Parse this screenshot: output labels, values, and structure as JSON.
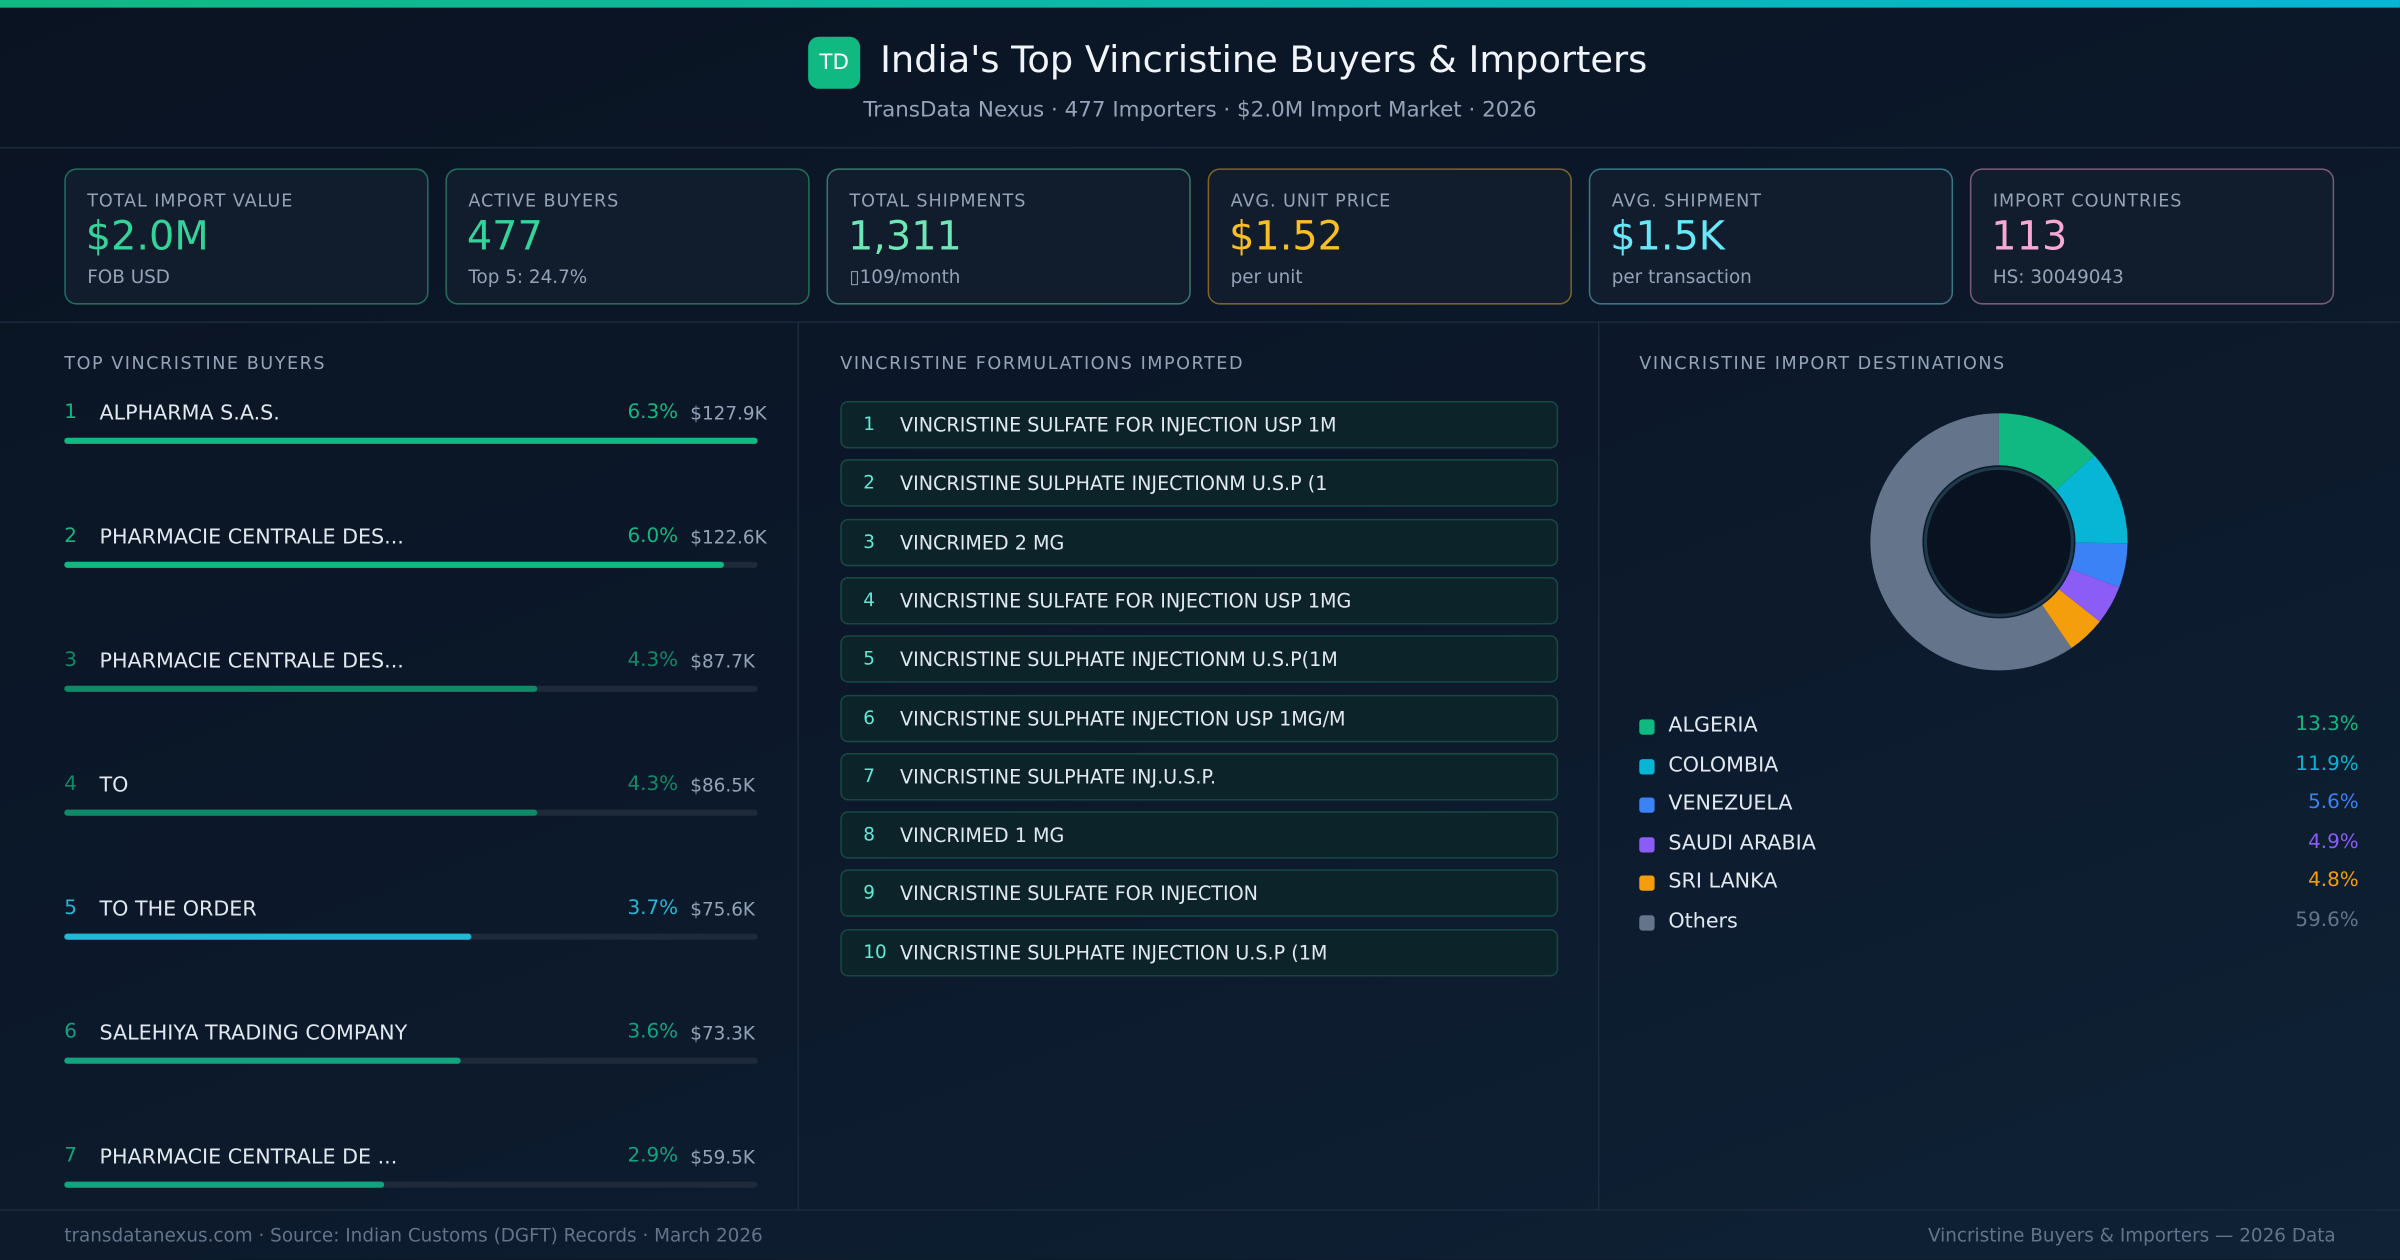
{
  "header": {
    "logo": "TD",
    "title": "India's Top Vincristine Buyers & Importers",
    "subtitle": "TransData Nexus · 477 Importers · $2.0M Import Market · 2026"
  },
  "kpis": [
    {
      "label": "TOTAL IMPORT VALUE",
      "value": "$2.0M",
      "sub": "FOB USD",
      "color": "#34d399"
    },
    {
      "label": "ACTIVE BUYERS",
      "value": "477",
      "sub": "Top 5: 24.7%",
      "color": "#34d399"
    },
    {
      "label": "TOTAL SHIPMENTS",
      "value": "1,311",
      "sub": "▯109/month",
      "color": "#6ee7b7"
    },
    {
      "label": "AVG. UNIT PRICE",
      "value": "$1.52",
      "sub": "per unit",
      "color": "#fbbf24"
    },
    {
      "label": "AVG. SHIPMENT",
      "value": "$1.5K",
      "sub": "per transaction",
      "color": "#67e8f9"
    },
    {
      "label": "IMPORT COUNTRIES",
      "value": "113",
      "sub": "HS: 30049043",
      "color": "#f9a8d4"
    }
  ],
  "buyers": {
    "title": "TOP VINCRISTINE BUYERS",
    "items": [
      {
        "rank": 1,
        "name": "ALPHARMA S.A.S.",
        "share": 6.3,
        "share_label": "6.3%",
        "value": "$127.9K",
        "color": "#10b981"
      },
      {
        "rank": 2,
        "name": "PHARMACIE CENTRALE DES...",
        "share": 6.0,
        "share_label": "6.0%",
        "value": "$122.6K",
        "color": "#10b981"
      },
      {
        "rank": 3,
        "name": "PHARMACIE CENTRALE DES...",
        "share": 4.3,
        "share_label": "4.3%",
        "value": "$87.7K",
        "color": "#0f8a67"
      },
      {
        "rank": 4,
        "name": "TO",
        "share": 4.3,
        "share_label": "4.3%",
        "value": "$86.5K",
        "color": "#0f8a67"
      },
      {
        "rank": 5,
        "name": "TO THE ORDER",
        "share": 3.7,
        "share_label": "3.7%",
        "value": "$75.6K",
        "color": "#22b8d8"
      },
      {
        "rank": 6,
        "name": "SALEHIYA TRADING COMPANY",
        "share": 3.6,
        "share_label": "3.6%",
        "value": "$73.3K",
        "color": "#12a37f"
      },
      {
        "rank": 7,
        "name": "PHARMACIE CENTRALE DE ...",
        "share": 2.9,
        "share_label": "2.9%",
        "value": "$59.5K",
        "color": "#12a37f"
      }
    ]
  },
  "formulations": {
    "title": "VINCRISTINE FORMULATIONS IMPORTED",
    "items": [
      {
        "rank": 1,
        "name": "VINCRISTINE SULFATE FOR INJECTION USP 1M"
      },
      {
        "rank": 2,
        "name": "VINCRISTINE SULPHATE INJECTIONM U.S.P (1"
      },
      {
        "rank": 3,
        "name": "VINCRIMED 2 MG"
      },
      {
        "rank": 4,
        "name": "VINCRISTINE SULFATE FOR INJECTION USP 1MG"
      },
      {
        "rank": 5,
        "name": "VINCRISTINE SULPHATE INJECTIONM U.S.P(1M"
      },
      {
        "rank": 6,
        "name": "VINCRISTINE SULPHATE INJECTION USP 1MG/M"
      },
      {
        "rank": 7,
        "name": "VINCRISTINE SULPHATE INJ.U.S.P."
      },
      {
        "rank": 8,
        "name": "VINCRIMED 1 MG"
      },
      {
        "rank": 9,
        "name": "VINCRISTINE SULFATE FOR INJECTION"
      },
      {
        "rank": 10,
        "name": "VINCRISTINE SULPHATE INJECTION U.S.P (1M"
      }
    ]
  },
  "destinations": {
    "title": "VINCRISTINE IMPORT DESTINATIONS",
    "items": [
      {
        "name": "ALGERIA",
        "share": 13.3,
        "share_label": "13.3%",
        "color": "#10b981"
      },
      {
        "name": "COLOMBIA",
        "share": 11.9,
        "share_label": "11.9%",
        "color": "#06b6d4"
      },
      {
        "name": "VENEZUELA",
        "share": 5.6,
        "share_label": "5.6%",
        "color": "#3b82f6"
      },
      {
        "name": "SAUDI ARABIA",
        "share": 4.9,
        "share_label": "4.9%",
        "color": "#8b5cf6"
      },
      {
        "name": "SRI LANKA",
        "share": 4.8,
        "share_label": "4.8%",
        "color": "#f59e0b"
      },
      {
        "name": "Others",
        "share": 59.6,
        "share_label": "59.6%",
        "color": "#64748b"
      }
    ]
  },
  "footer": {
    "left": "transdatanexus.com · Source: Indian Customs (DGFT) Records · March 2026",
    "right": "Vincristine Buyers & Importers — 2026 Data"
  }
}
